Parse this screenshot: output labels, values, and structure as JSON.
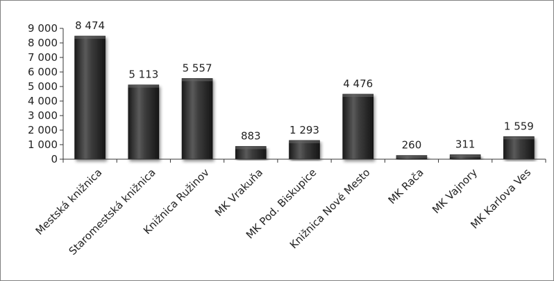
{
  "chart_data": {
    "type": "bar",
    "categories": [
      "Mestská knižnica",
      "Staromestská knižnica",
      "Knižnica Ružinov",
      "MK Vrakuňa",
      "MK Pod. Biskupice",
      "Knižnica Nové Mesto",
      "MK Rača",
      "MK Vajnory",
      "MK Karlova Ves"
    ],
    "values": [
      8474,
      5113,
      5557,
      883,
      1293,
      4476,
      260,
      311,
      1559
    ],
    "value_labels": [
      "8 474",
      "5 113",
      "5 557",
      "883",
      "1 293",
      "4 476",
      "260",
      "311",
      "1 559"
    ],
    "ylim": [
      0,
      9000
    ],
    "yticks": [
      0,
      1000,
      2000,
      3000,
      4000,
      5000,
      6000,
      7000,
      8000,
      9000
    ],
    "ytick_labels": [
      "0",
      "1 000",
      "2 000",
      "3 000",
      "4 000",
      "5 000",
      "6 000",
      "7 000",
      "8 000",
      "9 000"
    ],
    "grid": false,
    "legend": "none",
    "bar_color": "#3a3a3a"
  }
}
